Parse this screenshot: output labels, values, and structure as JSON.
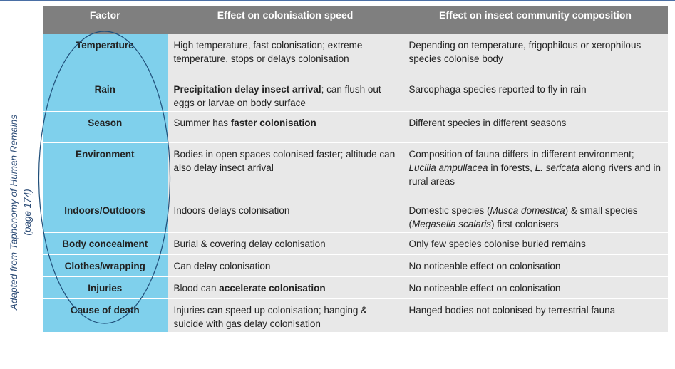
{
  "side_caption": {
    "line1": "Adapted from Taphonomy of Human Remains",
    "line2": "(page 174)"
  },
  "table": {
    "headers": [
      "Factor",
      "Effect on colonisation speed",
      "Effect on insect community composition"
    ],
    "rows": [
      {
        "factor": "Temperature",
        "speed": [
          {
            "t": "High temperature, fast colonisation; extreme temperature, stops or delays colonisation"
          }
        ],
        "composition": [
          {
            "t": "Depending on temperature, frigophilous or xerophilous species colonise body"
          }
        ]
      },
      {
        "factor": "Rain",
        "speed": [
          {
            "t": "Precipitation delay insect arrival",
            "b": true
          },
          {
            "t": "; can flush out eggs or larvae on body surface"
          }
        ],
        "composition": [
          {
            "t": "Sarcophaga species reported to fly in rain"
          }
        ]
      },
      {
        "factor": "Season",
        "speed": [
          {
            "t": "Summer has "
          },
          {
            "t": "faster colonisation",
            "b": true
          }
        ],
        "composition": [
          {
            "t": "Different species in different seasons"
          }
        ]
      },
      {
        "factor": "Environment",
        "speed": [
          {
            "t": "Bodies in open spaces colonised faster; altitude can also delay insect arrival"
          }
        ],
        "composition": [
          {
            "t": "Composition of fauna differs in different environment; "
          },
          {
            "t": "Lucilia ampullacea",
            "i": true
          },
          {
            "t": " in forests, "
          },
          {
            "t": "L. sericata",
            "i": true
          },
          {
            "t": " along rivers and in rural areas"
          }
        ]
      },
      {
        "factor": "Indoors/Outdoors",
        "speed": [
          {
            "t": "Indoors delays colonisation"
          }
        ],
        "composition": [
          {
            "t": "Domestic species ("
          },
          {
            "t": "Musca domestica",
            "i": true
          },
          {
            "t": ") & small species ("
          },
          {
            "t": "Megaselia scalaris",
            "i": true
          },
          {
            "t": ") first colonisers"
          }
        ]
      },
      {
        "factor": "Body concealment",
        "speed": [
          {
            "t": "Burial & covering delay colonisation"
          }
        ],
        "composition": [
          {
            "t": "Only few species colonise buried remains"
          }
        ]
      },
      {
        "factor": "Clothes/wrapping",
        "speed": [
          {
            "t": "Can delay colonisation"
          }
        ],
        "composition": [
          {
            "t": "No noticeable effect on colonisation"
          }
        ]
      },
      {
        "factor": "Injuries",
        "speed": [
          {
            "t": "Blood can "
          },
          {
            "t": "accelerate colonisation",
            "b": true
          }
        ],
        "composition": [
          {
            "t": "No noticeable effect on colonisation"
          }
        ]
      },
      {
        "factor": "Cause of death",
        "speed": [
          {
            "t": "Injuries can speed up colonisation; hanging  & suicide with gas delay colonisation"
          }
        ],
        "composition": [
          {
            "t": "Hanged bodies not colonised by terrestrial fauna"
          }
        ]
      }
    ]
  },
  "colors": {
    "header_bg": "#7f7f7f",
    "factor_bg": "#7fd0ec",
    "cell_bg": "#e8e8e8",
    "ellipse_stroke": "#1f4e79"
  }
}
